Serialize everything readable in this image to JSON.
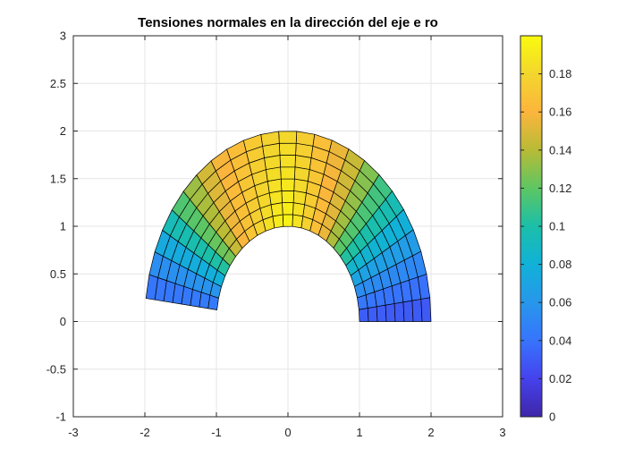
{
  "chart_data": {
    "type": "heatmap",
    "subtype": "polar mesh patch plot",
    "title": "Tensiones normales en la dirección del eje e ro",
    "xlabel": "",
    "ylabel": "",
    "xlim": [
      -3,
      3
    ],
    "ylim": [
      -1,
      3
    ],
    "xticks": [
      "-3",
      "-2",
      "-1",
      "0",
      "1",
      "2",
      "3"
    ],
    "yticks": [
      "-1",
      "-0.5",
      "0",
      "0.5",
      "1",
      "1.5",
      "2",
      "2.5",
      "3"
    ],
    "grid": true,
    "mesh": {
      "inner_radius": 1,
      "outer_radius": 2,
      "theta_start_deg": 0,
      "theta_end_deg": 173,
      "radial_divisions": 8,
      "angular_divisions": 24
    },
    "value_profile": {
      "angle_deg": [
        0,
        10,
        20,
        30,
        40,
        50,
        60,
        70,
        80,
        90,
        100,
        110,
        120,
        130,
        140,
        150,
        160,
        173
      ],
      "value": [
        0.025,
        0.038,
        0.055,
        0.075,
        0.098,
        0.12,
        0.145,
        0.16,
        0.175,
        0.185,
        0.18,
        0.17,
        0.16,
        0.145,
        0.12,
        0.09,
        0.06,
        0.035
      ],
      "radial_inner_gain": 0.06,
      "radial_outer_drop": 0.025
    },
    "colorbar": {
      "colormap": "parula",
      "limits": [
        0,
        0.2
      ],
      "ticks": [
        "0",
        "0.02",
        "0.04",
        "0.06",
        "0.08",
        "0.1",
        "0.12",
        "0.14",
        "0.16",
        "0.18"
      ],
      "location": "right"
    }
  }
}
